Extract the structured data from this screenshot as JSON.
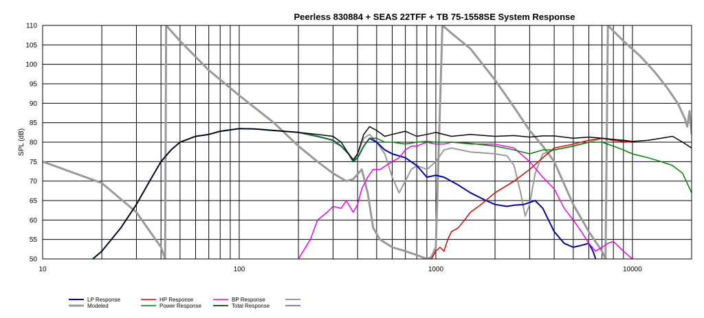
{
  "chart_data": {
    "type": "line",
    "title": "Peerless 830884 + SEAS 22TFF + TB 75-1558SE  System Response",
    "xlabel": "",
    "ylabel": "SPL (dB)",
    "x_scale": "log",
    "xlim": [
      10,
      20000
    ],
    "ylim": [
      50,
      110
    ],
    "grid": true,
    "legend_position": "bottom",
    "x_tick_labels": [
      {
        "value": 10,
        "label": "10"
      },
      {
        "value": 100,
        "label": "100"
      },
      {
        "value": 1000,
        "label": "1000"
      },
      {
        "value": 10000,
        "label": "10000"
      }
    ],
    "y_tick_labels": [
      "50",
      "55",
      "60",
      "65",
      "70",
      "75",
      "80",
      "85",
      "90",
      "95",
      "100",
      "105",
      "110"
    ],
    "y_ticks": [
      50,
      55,
      60,
      65,
      70,
      75,
      80,
      85,
      90,
      95,
      100,
      105,
      110
    ],
    "series": [
      {
        "name": "Modeled",
        "color": "#999999",
        "width": 3,
        "points": [
          [
            10,
            75
          ],
          [
            20,
            69.5
          ],
          [
            30,
            62
          ],
          [
            40,
            53
          ],
          [
            42,
            50
          ],
          [
            42.5,
            110
          ],
          [
            50,
            106
          ],
          [
            70,
            98.5
          ],
          [
            100,
            92
          ],
          [
            150,
            85
          ],
          [
            200,
            79
          ],
          [
            250,
            75
          ],
          [
            300,
            72
          ],
          [
            350,
            70
          ],
          [
            380,
            70.5
          ],
          [
            420,
            73
          ],
          [
            450,
            67
          ],
          [
            480,
            58
          ],
          [
            520,
            55
          ],
          [
            600,
            53
          ],
          [
            700,
            52
          ],
          [
            800,
            51
          ],
          [
            900,
            50
          ],
          [
            950,
            50.5
          ],
          [
            1000,
            53
          ],
          [
            1080,
            110
          ],
          [
            1200,
            108
          ],
          [
            1500,
            104
          ],
          [
            2000,
            96
          ],
          [
            2500,
            89
          ],
          [
            3000,
            83
          ],
          [
            3500,
            79
          ],
          [
            4000,
            75
          ],
          [
            5000,
            64
          ],
          [
            6000,
            57
          ],
          [
            7000,
            52
          ],
          [
            7300,
            50
          ],
          [
            7500,
            110
          ],
          [
            9000,
            106
          ],
          [
            11000,
            102
          ],
          [
            13000,
            98
          ],
          [
            15000,
            94
          ],
          [
            17000,
            90
          ],
          [
            18500,
            86
          ],
          [
            19000,
            84
          ],
          [
            19500,
            88
          ],
          [
            20000,
            82
          ]
        ]
      },
      {
        "name": "",
        "color": "#999999",
        "width": 2,
        "points": [
          [
            300,
            80
          ],
          [
            330,
            79
          ],
          [
            360,
            77
          ],
          [
            380,
            75
          ],
          [
            400,
            77
          ],
          [
            430,
            81
          ],
          [
            460,
            82
          ],
          [
            500,
            80
          ],
          [
            550,
            77
          ],
          [
            600,
            71
          ],
          [
            650,
            67
          ],
          [
            700,
            70
          ],
          [
            750,
            73
          ],
          [
            800,
            74
          ],
          [
            900,
            73
          ],
          [
            1000,
            75
          ],
          [
            1100,
            78
          ],
          [
            1200,
            78.5
          ],
          [
            1500,
            77.5
          ],
          [
            2000,
            77
          ],
          [
            2300,
            76.5
          ],
          [
            2500,
            74
          ],
          [
            2700,
            67
          ],
          [
            2850,
            61
          ],
          [
            3000,
            64
          ],
          [
            3200,
            72
          ],
          [
            3500,
            77
          ],
          [
            4000,
            78
          ],
          [
            5000,
            79
          ],
          [
            6000,
            80
          ],
          [
            7000,
            81
          ],
          [
            8000,
            80.5
          ],
          [
            10000,
            80
          ]
        ]
      },
      {
        "name": "LP Response",
        "color": "#0000aa",
        "width": 2,
        "points": [
          [
            18,
            50
          ],
          [
            20,
            52
          ],
          [
            25,
            58
          ],
          [
            30,
            64
          ],
          [
            35,
            70
          ],
          [
            40,
            75
          ],
          [
            45,
            78
          ],
          [
            50,
            80
          ],
          [
            60,
            81.5
          ],
          [
            70,
            82
          ],
          [
            80,
            82.8
          ],
          [
            100,
            83.5
          ],
          [
            120,
            83.4
          ],
          [
            150,
            83
          ],
          [
            200,
            82.5
          ],
          [
            250,
            81.5
          ],
          [
            300,
            80.5
          ],
          [
            330,
            79
          ],
          [
            360,
            77
          ],
          [
            380,
            75
          ],
          [
            400,
            76
          ],
          [
            430,
            79
          ],
          [
            460,
            81
          ],
          [
            500,
            80
          ],
          [
            550,
            78
          ],
          [
            600,
            77
          ],
          [
            700,
            76
          ],
          [
            800,
            74
          ],
          [
            900,
            71
          ],
          [
            1000,
            71.5
          ],
          [
            1100,
            71
          ],
          [
            1300,
            69
          ],
          [
            1500,
            67
          ],
          [
            1800,
            65
          ],
          [
            2000,
            64
          ],
          [
            2300,
            63.5
          ],
          [
            2500,
            63.8
          ],
          [
            2800,
            64
          ],
          [
            3200,
            65
          ],
          [
            3500,
            63
          ],
          [
            4000,
            57
          ],
          [
            4500,
            54
          ],
          [
            5000,
            53
          ],
          [
            5500,
            53.5
          ],
          [
            6000,
            54
          ],
          [
            6300,
            52
          ],
          [
            6500,
            50
          ]
        ]
      },
      {
        "name": "HP Response",
        "color": "#dd0000",
        "width": 1.5,
        "points": [
          [
            950,
            50
          ],
          [
            1000,
            52
          ],
          [
            1050,
            53
          ],
          [
            1100,
            52
          ],
          [
            1150,
            55
          ],
          [
            1200,
            57
          ],
          [
            1300,
            58
          ],
          [
            1400,
            60
          ],
          [
            1500,
            62
          ],
          [
            1700,
            64
          ],
          [
            2000,
            67
          ],
          [
            2500,
            70
          ],
          [
            3000,
            73
          ],
          [
            3500,
            76
          ],
          [
            4000,
            78.5
          ],
          [
            5000,
            79.5
          ],
          [
            6000,
            80.5
          ],
          [
            7000,
            81
          ],
          [
            8000,
            80.5
          ],
          [
            9000,
            80.2
          ],
          [
            10000,
            80
          ]
        ]
      },
      {
        "name": "BP Response",
        "color": "#ee00ee",
        "width": 1.5,
        "points": [
          [
            200,
            50
          ],
          [
            230,
            55
          ],
          [
            250,
            60
          ],
          [
            280,
            62
          ],
          [
            300,
            63.5
          ],
          [
            330,
            63
          ],
          [
            350,
            65
          ],
          [
            380,
            62
          ],
          [
            400,
            64
          ],
          [
            420,
            68
          ],
          [
            450,
            71
          ],
          [
            480,
            73
          ],
          [
            520,
            73
          ],
          [
            600,
            75
          ],
          [
            650,
            76
          ],
          [
            700,
            78
          ],
          [
            750,
            79
          ],
          [
            800,
            79
          ],
          [
            900,
            80
          ],
          [
            1000,
            79.5
          ],
          [
            1100,
            79.5
          ],
          [
            1200,
            80
          ],
          [
            1500,
            79.5
          ],
          [
            2000,
            79.5
          ],
          [
            2500,
            78.5
          ],
          [
            3000,
            75
          ],
          [
            3500,
            71
          ],
          [
            4000,
            68
          ],
          [
            4500,
            63
          ],
          [
            5000,
            60
          ],
          [
            5500,
            57
          ],
          [
            6000,
            54
          ],
          [
            6500,
            52
          ],
          [
            7000,
            53
          ],
          [
            7500,
            54
          ],
          [
            8000,
            54.5
          ],
          [
            9000,
            52
          ],
          [
            10000,
            50
          ]
        ]
      },
      {
        "name": "Power Response",
        "color": "#008000",
        "width": 1.5,
        "points": [
          [
            18,
            50
          ],
          [
            20,
            52
          ],
          [
            25,
            58
          ],
          [
            30,
            64
          ],
          [
            35,
            70
          ],
          [
            40,
            75
          ],
          [
            45,
            78
          ],
          [
            50,
            80
          ],
          [
            60,
            81.5
          ],
          [
            70,
            82
          ],
          [
            80,
            82.8
          ],
          [
            100,
            83.5
          ],
          [
            120,
            83.4
          ],
          [
            150,
            83
          ],
          [
            200,
            82.5
          ],
          [
            250,
            81.5
          ],
          [
            300,
            80.5
          ],
          [
            330,
            79
          ],
          [
            360,
            77
          ],
          [
            380,
            75
          ],
          [
            400,
            76
          ],
          [
            430,
            79
          ],
          [
            460,
            81
          ],
          [
            500,
            81
          ],
          [
            550,
            80
          ],
          [
            600,
            80
          ],
          [
            700,
            79.5
          ],
          [
            800,
            80
          ],
          [
            900,
            80.2
          ],
          [
            1000,
            80
          ],
          [
            1200,
            80
          ],
          [
            1500,
            79.7
          ],
          [
            2000,
            79
          ],
          [
            2500,
            78
          ],
          [
            3000,
            77
          ],
          [
            3500,
            78
          ],
          [
            4000,
            78
          ],
          [
            5000,
            79
          ],
          [
            6000,
            80
          ],
          [
            7000,
            80
          ],
          [
            8000,
            79
          ],
          [
            9000,
            78
          ],
          [
            10000,
            77
          ],
          [
            12000,
            76
          ],
          [
            14000,
            75
          ],
          [
            16000,
            74
          ],
          [
            18000,
            72
          ],
          [
            20000,
            67
          ]
        ]
      },
      {
        "name": "Total Response",
        "color": "#000000",
        "width": 1.5,
        "points": [
          [
            18,
            50
          ],
          [
            20,
            52
          ],
          [
            25,
            58
          ],
          [
            30,
            64
          ],
          [
            35,
            70
          ],
          [
            40,
            75
          ],
          [
            45,
            78
          ],
          [
            50,
            80
          ],
          [
            60,
            81.5
          ],
          [
            70,
            82
          ],
          [
            80,
            82.8
          ],
          [
            100,
            83.5
          ],
          [
            120,
            83.4
          ],
          [
            150,
            83
          ],
          [
            200,
            82.5
          ],
          [
            250,
            82
          ],
          [
            300,
            81.5
          ],
          [
            330,
            80
          ],
          [
            360,
            77
          ],
          [
            380,
            75.5
          ],
          [
            400,
            77
          ],
          [
            430,
            82
          ],
          [
            460,
            84
          ],
          [
            500,
            83
          ],
          [
            550,
            81.5
          ],
          [
            600,
            82
          ],
          [
            700,
            82.8
          ],
          [
            800,
            81.5
          ],
          [
            900,
            82
          ],
          [
            1000,
            82.5
          ],
          [
            1200,
            81.5
          ],
          [
            1500,
            82
          ],
          [
            2000,
            81.5
          ],
          [
            2500,
            81.7
          ],
          [
            3000,
            81.3
          ],
          [
            3500,
            81.6
          ],
          [
            4000,
            81.6
          ],
          [
            5000,
            81
          ],
          [
            6000,
            81.3
          ],
          [
            7000,
            81
          ],
          [
            8000,
            80.7
          ],
          [
            9000,
            80.5
          ],
          [
            10000,
            80.2
          ],
          [
            12000,
            80.5
          ],
          [
            14000,
            81
          ],
          [
            16000,
            81.5
          ],
          [
            18000,
            80
          ],
          [
            20000,
            78.5
          ]
        ]
      }
    ],
    "legend": [
      {
        "label": "LP Response",
        "color": "#0000aa",
        "width": 2
      },
      {
        "label": "Modeled",
        "color": "#999999",
        "width": 3
      },
      {
        "label": "HP Response",
        "color": "#dd0000",
        "width": 1.5
      },
      {
        "label": "Power Response",
        "color": "#008000",
        "width": 1.5
      },
      {
        "label": "BP Response",
        "color": "#ee00ee",
        "width": 1.5
      },
      {
        "label": "Total Response",
        "color": "#000000",
        "width": 1.5
      },
      {
        "label": "",
        "color": "#999999",
        "width": 2
      },
      {
        "label": "",
        "color": "#000080",
        "width": 1
      }
    ]
  }
}
